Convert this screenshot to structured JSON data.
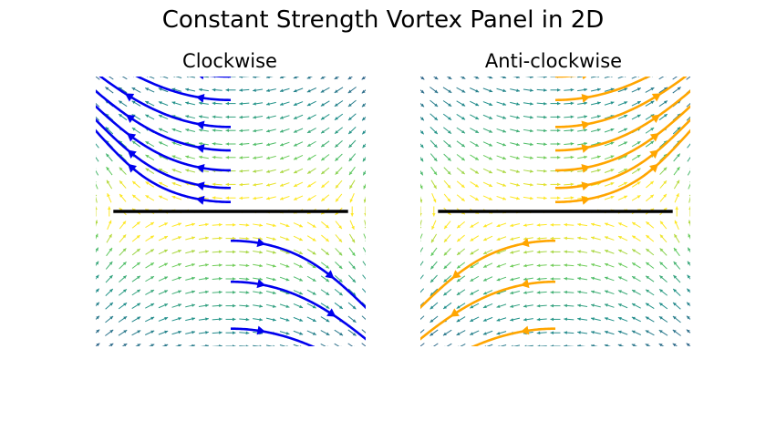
{
  "figure": {
    "title": "Constant Strength Vortex Panel in 2D"
  },
  "colors": {
    "clockwise_streamlines": "#0000ee",
    "anticlockwise_streamlines": "#ffa500",
    "panel": "#000000",
    "quiver_colormap": [
      "#440154",
      "#3b528b",
      "#21918c",
      "#5ec962",
      "#fde725"
    ]
  },
  "chart_data": [
    {
      "type": "streamplot",
      "title": "Clockwise",
      "direction": "clockwise",
      "panel": {
        "x": [
          -1,
          1
        ],
        "y": [
          0,
          0
        ]
      },
      "xlim": [
        -1.15,
        1.15
      ],
      "ylim": [
        -1.15,
        1.15
      ],
      "axes_visible": false,
      "grid": false,
      "streamline_color": "blue",
      "quiver_colormap": "viridis"
    },
    {
      "type": "streamplot",
      "title": "Anti-clockwise",
      "direction": "anticlockwise",
      "panel": {
        "x": [
          -1,
          1
        ],
        "y": [
          0,
          0
        ]
      },
      "xlim": [
        -1.15,
        1.15
      ],
      "ylim": [
        -1.15,
        1.15
      ],
      "axes_visible": false,
      "grid": false,
      "streamline_color": "orange",
      "quiver_colormap": "viridis"
    }
  ]
}
